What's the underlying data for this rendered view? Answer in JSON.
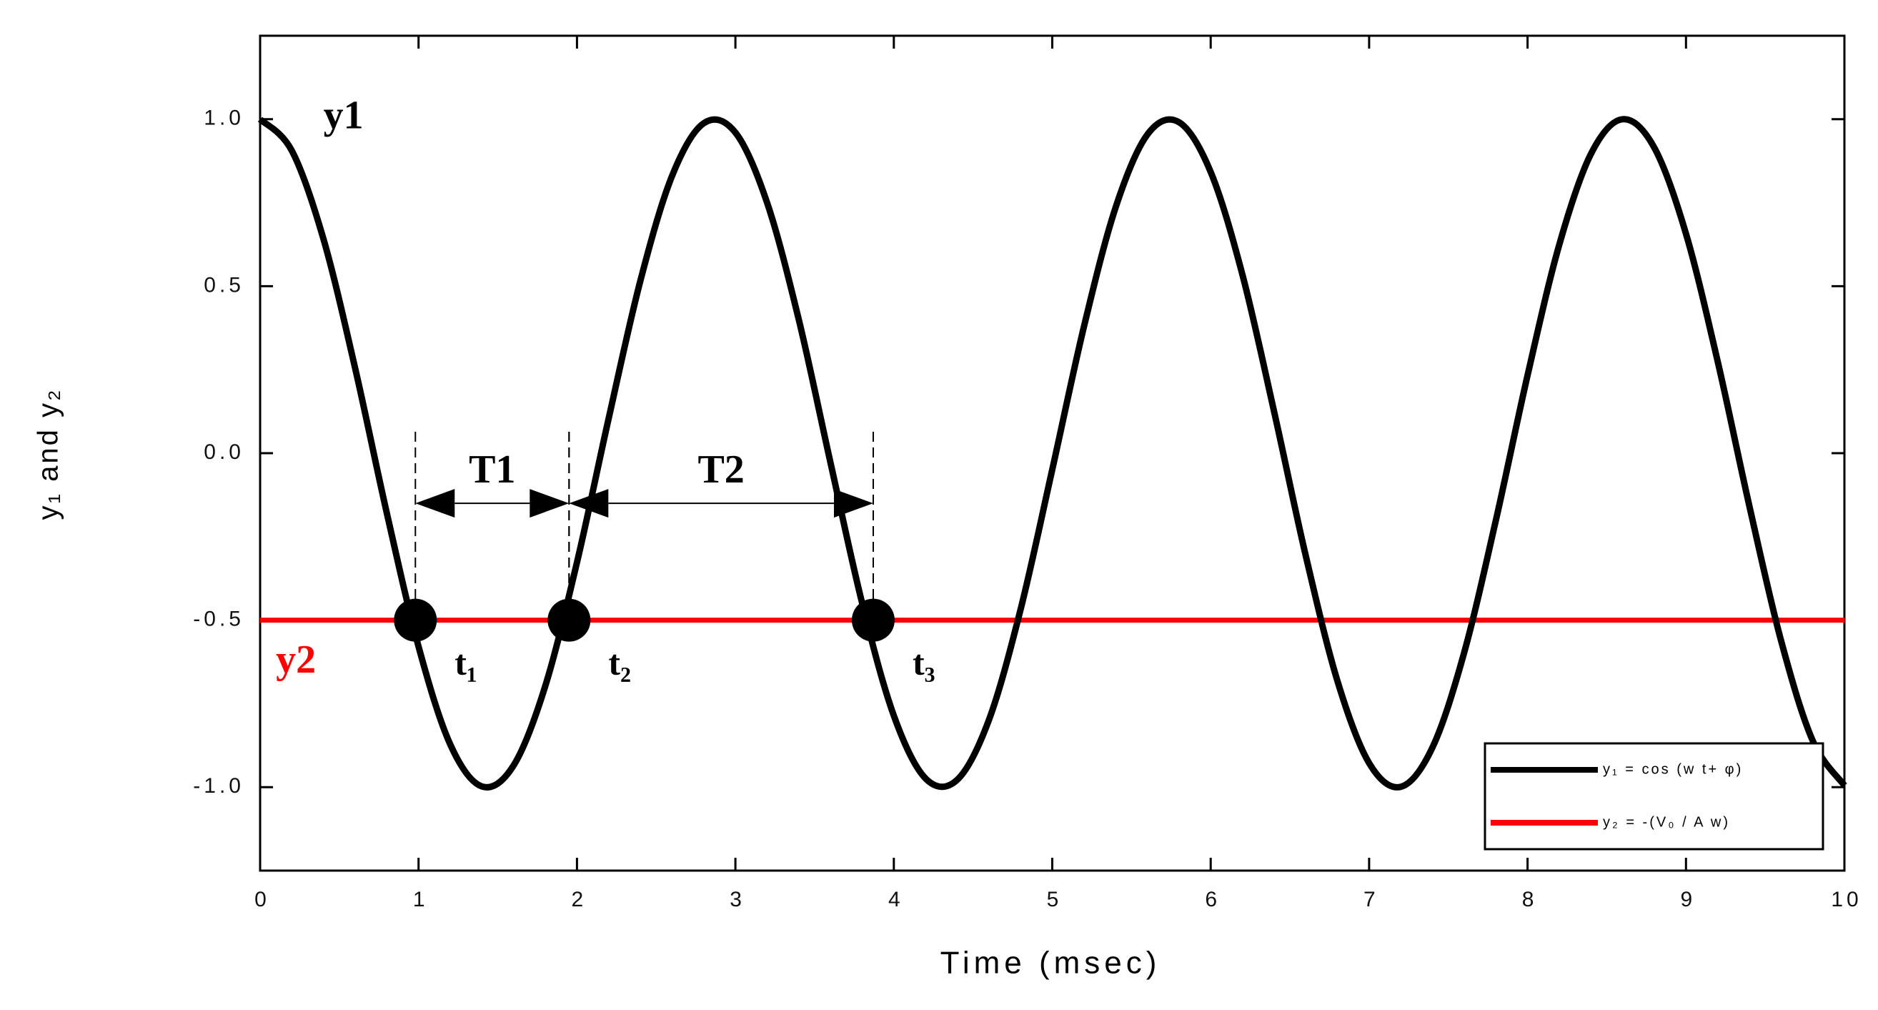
{
  "chart_data": {
    "type": "line",
    "x_label": "Time (msec)",
    "y_label": "y₁ and y₂",
    "xlim": [
      0,
      10
    ],
    "xticks": [
      0,
      1,
      2,
      3,
      4,
      5,
      6,
      7,
      8,
      9,
      10
    ],
    "ylim": [
      -1.25,
      1.25
    ],
    "yticks": [
      {
        "value": -1,
        "label": "-1.0"
      },
      {
        "value": -0.5,
        "label": "-0.5"
      },
      {
        "value": 0,
        "label": "0.0"
      },
      {
        "value": 0.5,
        "label": "0.5"
      },
      {
        "value": 1,
        "label": "1.0"
      }
    ],
    "x": [
      0,
      0.2,
      0.4,
      0.6,
      0.8,
      1.0,
      1.2,
      1.4,
      1.6,
      1.8,
      2.0,
      2.2,
      2.4,
      2.6,
      2.8,
      3.0,
      3.2,
      3.4,
      3.6,
      3.8,
      4.0,
      4.2,
      4.4,
      4.6,
      4.8,
      5.0,
      5.2,
      5.4,
      5.6,
      5.8,
      6.0,
      6.2,
      6.4,
      6.6,
      6.8,
      7.0,
      7.2,
      7.4,
      7.6,
      7.8,
      8.0,
      8.2,
      8.4,
      8.6,
      8.8,
      9.0,
      9.2,
      9.4,
      9.6,
      9.8,
      10.0
    ],
    "series": [
      {
        "name": "y₁ = cos (w t+ φ)",
        "color": "#000000",
        "values": [
          1,
          0.906,
          0.641,
          0.254,
          -0.18,
          -0.579,
          -0.872,
          -0.998,
          -0.935,
          -0.697,
          -0.327,
          0.104,
          0.516,
          0.83,
          0.988,
          0.96,
          0.75,
          0.4,
          -0.028,
          -0.449,
          -0.786,
          -0.974,
          -0.978,
          -0.799,
          -0.468,
          -0.049,
          0.379,
          0.736,
          0.954,
          0.991,
          0.842,
          0.535,
          0.125,
          -0.307,
          -0.682,
          -0.928,
          -0.999,
          -0.881,
          -0.597,
          -0.201,
          0.233,
          0.624,
          0.896,
          1,
          0.915,
          0.657,
          0.275,
          -0.158,
          -0.561,
          -0.861,
          -0.995
        ]
      },
      {
        "name": "y₂ = -(V₀ / A w)",
        "color": "#ff0000",
        "values": [
          -0.5,
          -0.5,
          -0.5,
          -0.5,
          -0.5,
          -0.5,
          -0.5,
          -0.5,
          -0.5,
          -0.5,
          -0.5,
          -0.5,
          -0.5,
          -0.5,
          -0.5,
          -0.5,
          -0.5,
          -0.5,
          -0.5,
          -0.5,
          -0.5,
          -0.5,
          -0.5,
          -0.5,
          -0.5,
          -0.5,
          -0.5,
          -0.5,
          -0.5,
          -0.5,
          -0.5,
          -0.5,
          -0.5,
          -0.5,
          -0.5,
          -0.5,
          -0.5,
          -0.5,
          -0.5,
          -0.5,
          -0.5,
          -0.5,
          -0.5,
          -0.5,
          -0.5,
          -0.5,
          -0.5,
          -0.5,
          -0.5,
          -0.5,
          -0.5
        ]
      }
    ],
    "points": {
      "x": [
        0.98,
        1.95,
        3.87
      ],
      "y": [
        -0.5,
        -0.5,
        -0.5
      ],
      "labels": [
        "t₁",
        "t₂",
        "t₃"
      ]
    },
    "intervals": [
      {
        "label": "T1",
        "from": 0.98,
        "to": 1.95,
        "y": -0.15
      },
      {
        "label": "T2",
        "from": 1.95,
        "to": 3.87,
        "y": -0.15
      }
    ],
    "series_labels": [
      {
        "text": "y1",
        "x": 0.4,
        "y": 1.0
      },
      {
        "text": "y2",
        "x": 0.1,
        "y": -0.63
      }
    ],
    "legend": "lower right"
  }
}
